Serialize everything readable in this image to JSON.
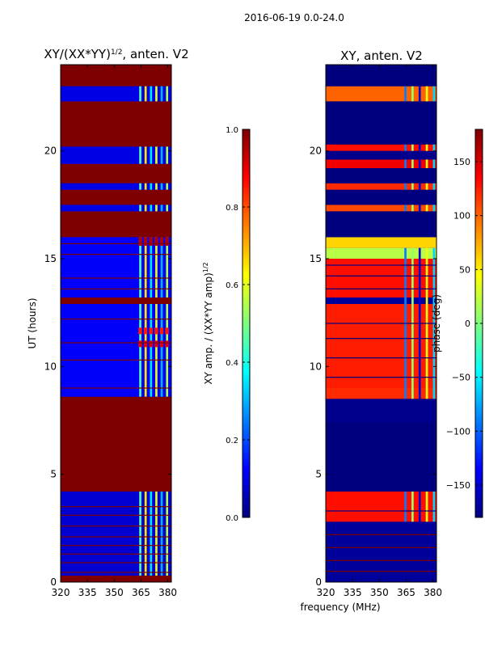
{
  "figure": {
    "suptitle": "2016-06-19 0.0-24.0",
    "shared_xlabel": "frequency (MHz)"
  },
  "colors": {
    "jet": [
      "#00007f",
      "#0000ff",
      "#007fff",
      "#00ffff",
      "#7fff7f",
      "#ffff00",
      "#ff7f00",
      "#ff0000",
      "#7f0000"
    ]
  },
  "chart_data": [
    {
      "type": "heatmap",
      "id": "amp",
      "title_main": "XY/(XX*YY)",
      "title_sup": "1/2",
      "title_tail": ", anten. V2",
      "xlabel": "",
      "ylabel": "UT (hours)",
      "xlim": [
        320,
        382
      ],
      "ylim": [
        0,
        24
      ],
      "x_ticks": [
        320,
        335,
        350,
        365,
        380
      ],
      "y_ticks": [
        0,
        5,
        10,
        15,
        20
      ],
      "colorbar": {
        "label_main": "XY amp. / (XX*YY amp)",
        "label_sup": "1/2",
        "range": [
          0.0,
          1.0
        ],
        "ticks": [
          "0.0",
          "0.2",
          "0.4",
          "0.6",
          "0.8",
          "1.0"
        ]
      },
      "background_value": 0.1,
      "time_bands": [
        {
          "t0": 0.0,
          "t1": 0.3,
          "v": 1.0
        },
        {
          "t0": 0.3,
          "t1": 4.2,
          "v": 0.08
        },
        {
          "t0": 4.2,
          "t1": 8.6,
          "v": 1.0
        },
        {
          "t0": 8.6,
          "t1": 12.9,
          "v": 0.12
        },
        {
          "t0": 12.9,
          "t1": 13.2,
          "v": 1.0
        },
        {
          "t0": 13.2,
          "t1": 16.0,
          "v": 0.12
        },
        {
          "t0": 16.0,
          "t1": 17.2,
          "v": 1.0
        },
        {
          "t0": 17.2,
          "t1": 17.5,
          "v": 0.1
        },
        {
          "t0": 17.5,
          "t1": 18.2,
          "v": 1.0
        },
        {
          "t0": 18.2,
          "t1": 18.5,
          "v": 0.1
        },
        {
          "t0": 18.5,
          "t1": 19.4,
          "v": 1.0
        },
        {
          "t0": 19.4,
          "t1": 20.2,
          "v": 0.1
        },
        {
          "t0": 20.2,
          "t1": 22.3,
          "v": 1.0
        },
        {
          "t0": 22.3,
          "t1": 23.0,
          "v": 0.1
        },
        {
          "t0": 23.0,
          "t1": 24.0,
          "v": 1.0
        }
      ],
      "high_lines": [
        0.45,
        0.9,
        1.3,
        1.7,
        2.1,
        2.6,
        3.1,
        3.5,
        7.3,
        9.0,
        10.3,
        11.1,
        12.2,
        13.6,
        14.1,
        15.2,
        15.7,
        18.8
      ],
      "low_lines": [],
      "feature": {
        "f0": 363,
        "f1": 382,
        "channels": [
          364,
          367,
          370,
          373,
          376,
          379
        ],
        "values": [
          0.45,
          0.65,
          0.35,
          0.6,
          0.3,
          0.55
        ]
      },
      "feature_hot": [
        {
          "t0": 10.9,
          "t1": 11.2,
          "v": 0.9
        },
        {
          "t0": 11.5,
          "t1": 11.8,
          "v": 0.85
        },
        {
          "t0": 15.6,
          "t1": 16.0,
          "v": 0.95
        }
      ],
      "feature_mask": [
        {
          "t0": 0.3,
          "t1": 4.2
        },
        {
          "t0": 8.6,
          "t1": 12.9
        },
        {
          "t0": 13.2,
          "t1": 16.0
        },
        {
          "t0": 17.2,
          "t1": 17.5
        },
        {
          "t0": 18.2,
          "t1": 18.5
        },
        {
          "t0": 19.4,
          "t1": 20.2
        },
        {
          "t0": 22.3,
          "t1": 23.0
        }
      ]
    },
    {
      "type": "heatmap",
      "id": "phase",
      "title_main": "XY, anten. V2",
      "xlabel": "",
      "ylabel": "",
      "xlim": [
        320,
        382
      ],
      "ylim": [
        0,
        24
      ],
      "x_ticks": [
        320,
        335,
        350,
        365,
        380
      ],
      "y_ticks": [
        0,
        5,
        10,
        15,
        20
      ],
      "colorbar": {
        "label_main": "phase (deg)",
        "range": [
          -180,
          180
        ],
        "ticks": [
          "−150",
          "−100",
          "−50",
          "0",
          "50",
          "100",
          "150"
        ],
        "tick_values": [
          -150,
          -100,
          -50,
          0,
          50,
          100,
          150
        ]
      },
      "background_value": -180,
      "time_bands": [
        {
          "t0": 0.0,
          "t1": 2.8,
          "v": -170
        },
        {
          "t0": 2.8,
          "t1": 4.2,
          "v": 130
        },
        {
          "t0": 4.2,
          "t1": 7.4,
          "v": -180
        },
        {
          "t0": 7.4,
          "t1": 8.5,
          "v": -175
        },
        {
          "t0": 8.5,
          "t1": 9.0,
          "v": 120
        },
        {
          "t0": 9.0,
          "t1": 12.9,
          "v": 125
        },
        {
          "t0": 12.9,
          "t1": 13.2,
          "v": -170
        },
        {
          "t0": 13.2,
          "t1": 15.0,
          "v": 130
        },
        {
          "t0": 15.0,
          "t1": 15.5,
          "v": 20
        },
        {
          "t0": 15.5,
          "t1": 16.0,
          "v": 60
        },
        {
          "t0": 16.0,
          "t1": 17.2,
          "v": -180
        },
        {
          "t0": 17.2,
          "t1": 17.5,
          "v": 110
        },
        {
          "t0": 17.5,
          "t1": 18.2,
          "v": -180
        },
        {
          "t0": 18.2,
          "t1": 18.5,
          "v": 120
        },
        {
          "t0": 18.5,
          "t1": 19.2,
          "v": -180
        },
        {
          "t0": 19.2,
          "t1": 19.6,
          "v": 140
        },
        {
          "t0": 19.6,
          "t1": 20.0,
          "v": -175
        },
        {
          "t0": 20.0,
          "t1": 20.3,
          "v": 130
        },
        {
          "t0": 20.3,
          "t1": 22.3,
          "v": -180
        },
        {
          "t0": 22.3,
          "t1": 23.0,
          "v": 100
        },
        {
          "t0": 23.0,
          "t1": 24.0,
          "v": -180
        }
      ],
      "high_lines": [
        0.5,
        1.0,
        1.6,
        2.2
      ],
      "low_lines": [
        3.3,
        9.5,
        10.4,
        11.3,
        12.0,
        13.6,
        14.2,
        14.7
      ],
      "feature": {
        "f0": 362,
        "f1": 382,
        "channels": [
          364,
          368,
          372,
          376,
          380
        ],
        "values": [
          -90,
          10,
          -150,
          40,
          -60
        ]
      },
      "feature_hot": [],
      "feature_mask": [
        {
          "t0": 2.8,
          "t1": 4.2
        },
        {
          "t0": 8.5,
          "t1": 15.5
        },
        {
          "t0": 17.2,
          "t1": 17.5
        },
        {
          "t0": 18.2,
          "t1": 18.5
        },
        {
          "t0": 19.2,
          "t1": 19.6
        },
        {
          "t0": 20.0,
          "t1": 20.3
        },
        {
          "t0": 22.3,
          "t1": 23.0
        }
      ]
    }
  ]
}
